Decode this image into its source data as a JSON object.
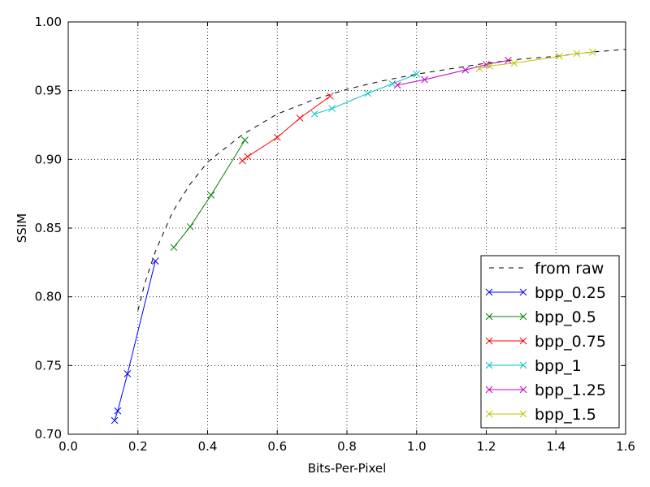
{
  "chart_data": {
    "type": "line",
    "title": "",
    "xlabel": "Bits-Per-Pixel",
    "ylabel": "SSIM",
    "xlim": [
      0.0,
      1.6
    ],
    "ylim": [
      0.7,
      1.0
    ],
    "x_ticks": [
      "0.0",
      "0.2",
      "0.4",
      "0.6",
      "0.8",
      "1.0",
      "1.2",
      "1.4",
      "1.6"
    ],
    "y_ticks": [
      "0.70",
      "0.75",
      "0.80",
      "0.85",
      "0.90",
      "0.95",
      "1.00"
    ],
    "grid": true,
    "legend_position": "bottom-right",
    "series": [
      {
        "name": "from raw",
        "style": "dashed",
        "marker": "none",
        "color": "#000000",
        "points": [
          [
            0.2,
            0.79
          ],
          [
            0.22,
            0.81
          ],
          [
            0.25,
            0.833
          ],
          [
            0.3,
            0.862
          ],
          [
            0.35,
            0.882
          ],
          [
            0.4,
            0.898
          ],
          [
            0.5,
            0.918
          ],
          [
            0.6,
            0.933
          ],
          [
            0.7,
            0.943
          ],
          [
            0.8,
            0.951
          ],
          [
            0.9,
            0.957
          ],
          [
            1.0,
            0.962
          ],
          [
            1.1,
            0.966
          ],
          [
            1.2,
            0.97
          ],
          [
            1.3,
            0.973
          ],
          [
            1.4,
            0.975
          ],
          [
            1.5,
            0.978
          ],
          [
            1.6,
            0.98
          ]
        ]
      },
      {
        "name": "bpp_0.25",
        "style": "solid",
        "marker": "x",
        "color": "#0000ff",
        "points": [
          [
            0.133,
            0.71
          ],
          [
            0.142,
            0.717
          ],
          [
            0.17,
            0.744
          ],
          [
            0.25,
            0.826
          ]
        ]
      },
      {
        "name": "bpp_0.5",
        "style": "solid",
        "marker": "x",
        "color": "#008000",
        "points": [
          [
            0.303,
            0.836
          ],
          [
            0.35,
            0.851
          ],
          [
            0.41,
            0.874
          ],
          [
            0.507,
            0.914
          ]
        ]
      },
      {
        "name": "bpp_0.75",
        "style": "solid",
        "marker": "x",
        "color": "#ff0000",
        "points": [
          [
            0.5,
            0.899
          ],
          [
            0.515,
            0.902
          ],
          [
            0.6,
            0.916
          ],
          [
            0.665,
            0.93
          ],
          [
            0.752,
            0.946
          ]
        ]
      },
      {
        "name": "bpp_1",
        "style": "solid",
        "marker": "x",
        "color": "#00bfbf",
        "points": [
          [
            0.707,
            0.933
          ],
          [
            0.757,
            0.937
          ],
          [
            0.86,
            0.948
          ],
          [
            0.93,
            0.955
          ],
          [
            1.0,
            0.962
          ]
        ]
      },
      {
        "name": "bpp_1.25",
        "style": "solid",
        "marker": "x",
        "color": "#bf00bf",
        "points": [
          [
            0.945,
            0.954
          ],
          [
            1.023,
            0.958
          ],
          [
            1.14,
            0.965
          ],
          [
            1.2,
            0.969
          ],
          [
            1.263,
            0.972
          ]
        ]
      },
      {
        "name": "bpp_1.5",
        "style": "solid",
        "marker": "x",
        "color": "#bfbf00",
        "points": [
          [
            1.18,
            0.966
          ],
          [
            1.21,
            0.968
          ],
          [
            1.28,
            0.97
          ],
          [
            1.41,
            0.975
          ],
          [
            1.46,
            0.977
          ],
          [
            1.505,
            0.978
          ]
        ]
      }
    ]
  }
}
